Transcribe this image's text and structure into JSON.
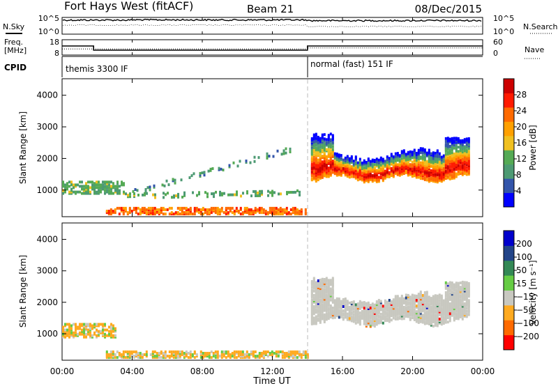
{
  "header": {
    "station": "Fort Hays West (fitACF)",
    "beam": "Beam 21",
    "date": "08/Dec/2015"
  },
  "labels": {
    "nsky": "N.Sky",
    "nsearch": "N.Search",
    "freq_line1": "Freq.",
    "freq_line2": "[MHz]",
    "nave": "Nave",
    "cpid": "CPID",
    "cpid_left": "themis 3300 IF",
    "cpid_right": "normal (fast) 151 IF",
    "x_title": "Time UT",
    "y_title_power": "Slant Range [km]",
    "y_title_velocity": "Slant Range [km]",
    "power_cbar_title": "Power [dB]",
    "velocity_cbar_title": "Velocity [m s⁻¹]"
  },
  "colors": {
    "power_scale": [
      "#0000ff",
      "#3355aa",
      "#4d9a73",
      "#55aa55",
      "#f0c020",
      "#ffa000",
      "#ff6a00",
      "#ff1a00",
      "#cc0000"
    ],
    "velocity_scale": [
      "#ff0000",
      "#ff6a00",
      "#ffaa20",
      "#c8c8c0",
      "#66cc44",
      "#338855",
      "#224488",
      "#0000cc"
    ]
  },
  "chart_data": [
    {
      "type": "line",
      "name": "noise-panel",
      "x": [
        0,
        4,
        8,
        12,
        14,
        16,
        20,
        24
      ],
      "series": [
        {
          "name": "N.Sky",
          "values": [
            100000,
            120000,
            110000,
            115000,
            60000,
            60000,
            65000,
            60000
          ]
        }
      ],
      "yticks": [
        "10^5",
        "10^0"
      ],
      "yticks_right": [
        "10^5",
        "10^0"
      ],
      "ylog": true
    },
    {
      "type": "line",
      "name": "freq-nave-panel",
      "x": [
        0,
        1.8,
        1.8,
        14,
        14,
        24
      ],
      "series": [
        {
          "name": "Freq.",
          "values": [
            14,
            14,
            11,
            11,
            14,
            14
          ]
        },
        {
          "name": "Nave",
          "values": [
            23,
            23,
            23,
            23,
            28,
            28
          ]
        }
      ],
      "yticks": [
        "18",
        "8"
      ],
      "yticks_right": [
        "60",
        "0"
      ]
    },
    {
      "type": "heatmap",
      "name": "power-panel",
      "xlabel": "Time UT",
      "ylabel": "Slant Range [km]",
      "xlim": [
        0,
        24
      ],
      "ylim": [
        180,
        4500
      ],
      "xticks": [
        "00:00",
        "04:00",
        "08:00",
        "12:00",
        "16:00",
        "20:00",
        "00:00"
      ],
      "yticks": [
        1000,
        2000,
        3000,
        4000
      ],
      "colorbar": {
        "title": "Power [dB]",
        "ticks": [
          4,
          8,
          12,
          16,
          20,
          24,
          28
        ],
        "range": [
          0,
          30
        ]
      },
      "features": [
        {
          "label": "ground scatter band",
          "t_start": 0,
          "t_end": 13.5,
          "range_km": [
            850,
            1250
          ],
          "power_db": 10
        },
        {
          "label": "near-range echoes",
          "t_start": 2.5,
          "t_end": 14,
          "range_km": [
            200,
            400
          ],
          "power_db": 22
        },
        {
          "label": "ionospheric scatter",
          "t_start": 14.2,
          "t_end": 23.2,
          "range_km": [
            1350,
            2600
          ],
          "power_db": 26
        },
        {
          "label": "sparse scatter",
          "t_start": 4,
          "t_end": 13,
          "range_km": [
            900,
            2300
          ],
          "power_db": 8
        }
      ]
    },
    {
      "type": "heatmap",
      "name": "velocity-panel",
      "xlabel": "Time UT",
      "ylabel": "Slant Range [km]",
      "xlim": [
        0,
        24
      ],
      "ylim": [
        180,
        4500
      ],
      "xticks": [
        "00:00",
        "04:00",
        "08:00",
        "12:00",
        "16:00",
        "20:00",
        "00:00"
      ],
      "yticks": [
        1000,
        2000,
        3000,
        4000
      ],
      "colorbar": {
        "title": "Velocity [m s⁻¹]",
        "ticks": [
          200,
          100,
          50,
          15,
          -15,
          -50,
          -100,
          -200
        ],
        "range": [
          -250,
          250
        ]
      },
      "features": [
        {
          "label": "early band",
          "t_start": 0,
          "t_end": 3,
          "range_km": [
            850,
            1300
          ],
          "velocity": -30
        },
        {
          "label": "near-range echoes",
          "t_start": 2.5,
          "t_end": 14,
          "range_km": [
            200,
            400
          ],
          "velocity": -30
        },
        {
          "label": "ionospheric scatter",
          "t_start": 14.2,
          "t_end": 23.2,
          "range_km": [
            1350,
            2600
          ],
          "velocity": 0
        }
      ]
    }
  ]
}
